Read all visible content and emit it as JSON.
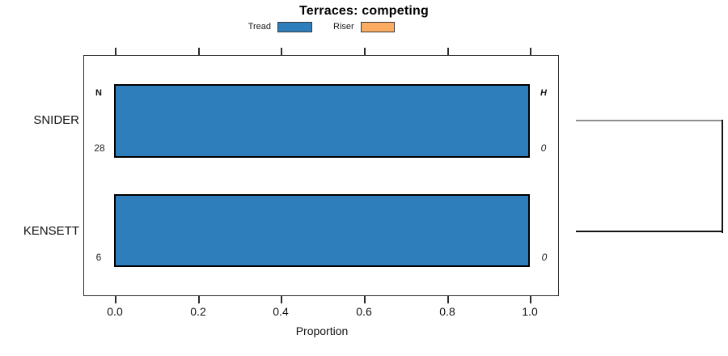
{
  "title": "Terraces: competing",
  "legend": {
    "items": [
      {
        "label": "Tread",
        "color": "#2e7ebc"
      },
      {
        "label": "Riser",
        "color": "#fbac60"
      }
    ]
  },
  "axis": {
    "xlabel": "Proportion",
    "ticks": [
      "0.0",
      "0.2",
      "0.4",
      "0.6",
      "0.8",
      "1.0"
    ]
  },
  "columns": {
    "left_header": "N",
    "right_header": "H"
  },
  "rows": [
    {
      "label": "SNIDER",
      "n": "28",
      "h": "0"
    },
    {
      "label": "KENSETT",
      "n": "6",
      "h": "0"
    }
  ],
  "chart_data": {
    "type": "bar",
    "orientation": "horizontal",
    "title": "Terraces: competing",
    "categories": [
      "SNIDER",
      "KENSETT"
    ],
    "series": [
      {
        "name": "Tread",
        "values": [
          1.0,
          1.0
        ],
        "color": "#2e7ebc"
      },
      {
        "name": "Riser",
        "values": [
          0.0,
          0.0
        ],
        "color": "#fbac60"
      }
    ],
    "annotations": {
      "N_column_header": "N",
      "H_column_header": "H",
      "N_values": [
        28,
        6
      ],
      "H_values": [
        0,
        0
      ]
    },
    "xlabel": "Proportion",
    "xlim": [
      0.0,
      1.0
    ],
    "x_ticks": [
      0.0,
      0.2,
      0.4,
      0.6,
      0.8,
      1.0
    ],
    "legend_position": "top-center",
    "grid": false,
    "extras": "right-side bracket (dendrogram-style) joins the SNIDER and KENSETT row centers outside the plot box"
  }
}
